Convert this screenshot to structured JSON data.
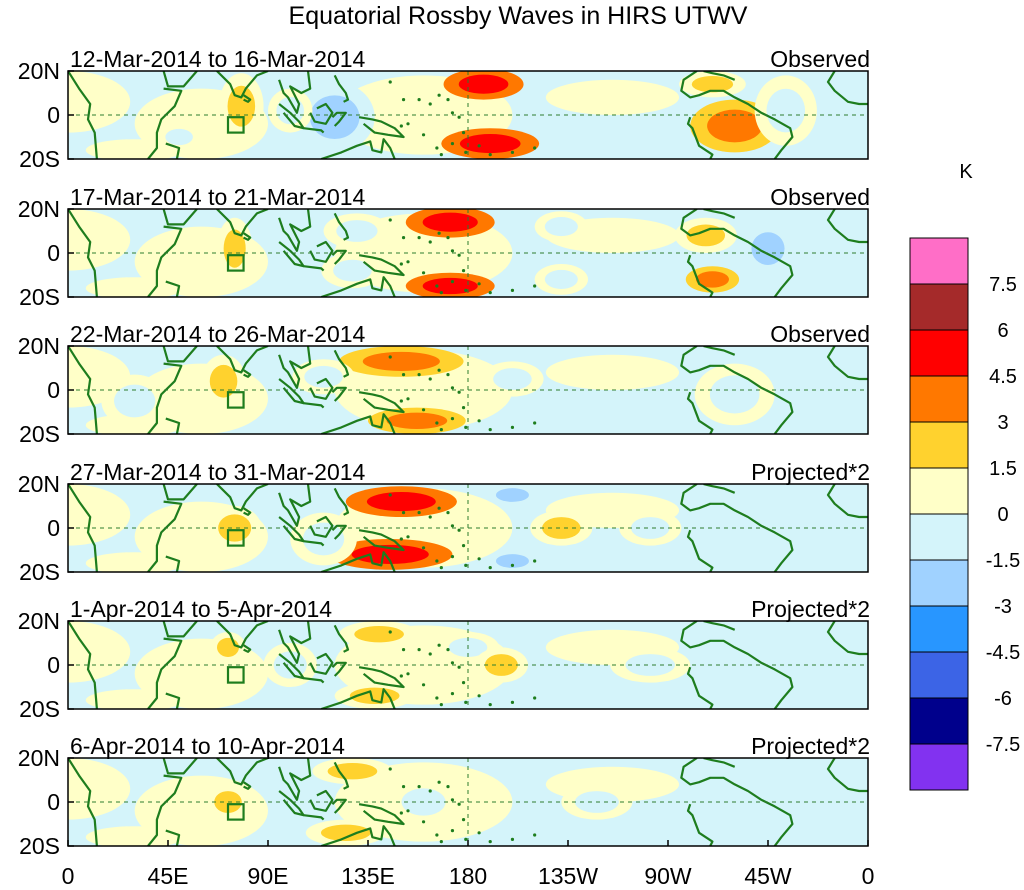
{
  "chart_data": {
    "type": "heatmap",
    "title": "Equatorial Rossby Waves in HIRS UTWV",
    "units": "K",
    "y_ticks": [
      "20N",
      "0",
      "20S"
    ],
    "x_ticks": [
      "0",
      "45E",
      "90E",
      "135E",
      "180",
      "135W",
      "90W",
      "45W",
      "0"
    ],
    "x_range_degE": [
      0,
      360
    ],
    "y_range_deg": [
      -20,
      20
    ],
    "colorbar": {
      "levels": [
        "7.5",
        "6",
        "4.5",
        "3",
        "1.5",
        "0",
        "-1.5",
        "-3",
        "-4.5",
        "-6",
        "-7.5"
      ],
      "colors": [
        "#ff6ec7",
        "#a52a2a",
        "#ff0000",
        "#ff7800",
        "#ffd22e",
        "#ffffc8",
        "#d4f4fa",
        "#a0d2ff",
        "#2896ff",
        "#3c64e6",
        "#00008c",
        "#8232f0"
      ]
    },
    "panels": [
      {
        "period": "12-Mar-2014 to 16-Mar-2014",
        "type": "Observed",
        "anomalies": [
          {
            "lon": 187,
            "lat": 14,
            "rx": 18,
            "ry": 7,
            "value": 4.5
          },
          {
            "lon": 190,
            "lat": -13,
            "rx": 22,
            "ry": 7,
            "value": 4.5
          },
          {
            "lon": 120,
            "lat": -1,
            "rx": 18,
            "ry": 16,
            "value": -3
          },
          {
            "lon": 300,
            "lat": -5,
            "rx": 20,
            "ry": 12,
            "value": 3
          },
          {
            "lon": 78,
            "lat": 4,
            "rx": 10,
            "ry": 15,
            "value": 1.5
          },
          {
            "lon": 290,
            "lat": 14,
            "rx": 15,
            "ry": 6,
            "value": 1.5
          },
          {
            "lon": 323,
            "lat": 2,
            "rx": 14,
            "ry": 16,
            "value": -1.5
          },
          {
            "lon": 100,
            "lat": 2,
            "rx": 10,
            "ry": 10,
            "value": -1.5
          },
          {
            "lon": 50,
            "lat": -10,
            "rx": 10,
            "ry": 6,
            "value": -1.5
          }
        ]
      },
      {
        "period": "17-Mar-2014 to 21-Mar-2014",
        "type": "Observed",
        "anomalies": [
          {
            "lon": 172,
            "lat": 14,
            "rx": 20,
            "ry": 7,
            "value": 4.5
          },
          {
            "lon": 172,
            "lat": -15,
            "rx": 20,
            "ry": 6,
            "value": 4.5
          },
          {
            "lon": 222,
            "lat": 12,
            "rx": 12,
            "ry": 7,
            "value": -1.5
          },
          {
            "lon": 222,
            "lat": -12,
            "rx": 12,
            "ry": 7,
            "value": -1.5
          },
          {
            "lon": 290,
            "lat": -12,
            "rx": 12,
            "ry": 6,
            "value": 3
          },
          {
            "lon": 287,
            "lat": 8,
            "rx": 14,
            "ry": 8,
            "value": 1.5
          },
          {
            "lon": 315,
            "lat": 2,
            "rx": 12,
            "ry": 12,
            "value": -3
          },
          {
            "lon": 130,
            "lat": 10,
            "rx": 15,
            "ry": 8,
            "value": -1.5
          },
          {
            "lon": 128,
            "lat": -8,
            "rx": 14,
            "ry": 8,
            "value": -1.5
          },
          {
            "lon": 75,
            "lat": 2,
            "rx": 8,
            "ry": 14,
            "value": 1.5
          }
        ]
      },
      {
        "period": "22-Mar-2014 to 26-Mar-2014",
        "type": "Observed",
        "anomalies": [
          {
            "lon": 150,
            "lat": 13,
            "rx": 28,
            "ry": 7,
            "value": 3
          },
          {
            "lon": 157,
            "lat": -14,
            "rx": 22,
            "ry": 6,
            "value": 3
          },
          {
            "lon": 115,
            "lat": 6,
            "rx": 14,
            "ry": 8,
            "value": -1.5
          },
          {
            "lon": 200,
            "lat": 5,
            "rx": 14,
            "ry": 8,
            "value": -1.5
          },
          {
            "lon": 300,
            "lat": -2,
            "rx": 18,
            "ry": 14,
            "value": -1.5
          },
          {
            "lon": 30,
            "lat": -5,
            "rx": 15,
            "ry": 12,
            "value": -1.5
          },
          {
            "lon": 70,
            "lat": 4,
            "rx": 10,
            "ry": 12,
            "value": 1.5
          }
        ]
      },
      {
        "period": "27-Mar-2014 to 31-Mar-2014",
        "type": "Projected*2",
        "anomalies": [
          {
            "lon": 150,
            "lat": 12,
            "rx": 25,
            "ry": 7,
            "value": 4.5
          },
          {
            "lon": 145,
            "lat": -12,
            "rx": 28,
            "ry": 7,
            "value": 4.5
          },
          {
            "lon": 115,
            "lat": -5,
            "rx": 15,
            "ry": 12,
            "value": -1.5
          },
          {
            "lon": 200,
            "lat": 15,
            "rx": 12,
            "ry": 5,
            "value": -3
          },
          {
            "lon": 200,
            "lat": -15,
            "rx": 12,
            "ry": 5,
            "value": -3
          },
          {
            "lon": 222,
            "lat": 0,
            "rx": 14,
            "ry": 8,
            "value": 1.5
          },
          {
            "lon": 75,
            "lat": 0,
            "rx": 12,
            "ry": 10,
            "value": 1.5
          },
          {
            "lon": 262,
            "lat": 0,
            "rx": 14,
            "ry": 8,
            "value": -1.5
          }
        ]
      },
      {
        "period": "1-Apr-2014 to 5-Apr-2014",
        "type": "Projected*2",
        "anomalies": [
          {
            "lon": 140,
            "lat": 14,
            "rx": 18,
            "ry": 6,
            "value": 1.5
          },
          {
            "lon": 138,
            "lat": -14,
            "rx": 18,
            "ry": 6,
            "value": 1.5
          },
          {
            "lon": 180,
            "lat": 8,
            "rx": 14,
            "ry": 7,
            "value": -1.5
          },
          {
            "lon": 195,
            "lat": 0,
            "rx": 12,
            "ry": 8,
            "value": 1.5
          },
          {
            "lon": 262,
            "lat": 0,
            "rx": 18,
            "ry": 8,
            "value": -1.5
          },
          {
            "lon": 100,
            "lat": 0,
            "rx": 12,
            "ry": 10,
            "value": -1.5
          },
          {
            "lon": 72,
            "lat": 8,
            "rx": 8,
            "ry": 7,
            "value": 1.5
          }
        ]
      },
      {
        "period": "6-Apr-2014 to 10-Apr-2014",
        "type": "Projected*2",
        "anomalies": [
          {
            "lon": 128,
            "lat": 14,
            "rx": 18,
            "ry": 6,
            "value": 1.5
          },
          {
            "lon": 125,
            "lat": -14,
            "rx": 18,
            "ry": 6,
            "value": 1.5
          },
          {
            "lon": 160,
            "lat": 0,
            "rx": 16,
            "ry": 10,
            "value": -1.5
          },
          {
            "lon": 238,
            "lat": 0,
            "rx": 16,
            "ry": 8,
            "value": -1.5
          },
          {
            "lon": 72,
            "lat": 0,
            "rx": 10,
            "ry": 8,
            "value": 1.5
          }
        ]
      }
    ]
  }
}
